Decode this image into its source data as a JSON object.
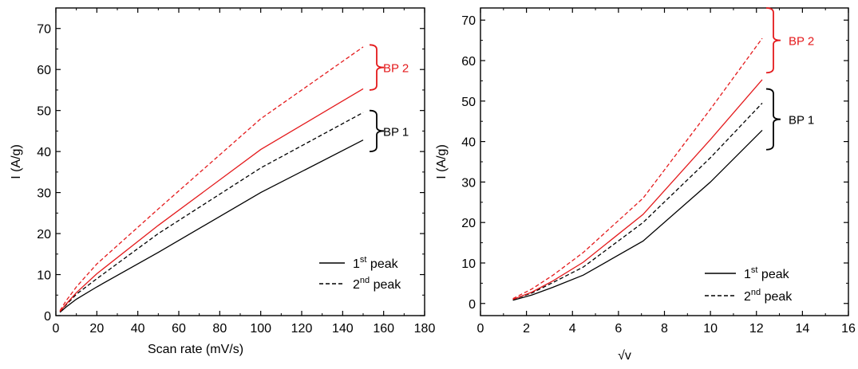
{
  "colors": {
    "bp1": "#000000",
    "bp2": "#e41a1c",
    "axis": "#000000",
    "background": "#ffffff"
  },
  "chart_data": [
    {
      "type": "line",
      "xlabel": "Scan rate (mV/s)",
      "ylabel": "I (A/g)",
      "xlim": [
        0,
        180
      ],
      "ylim": [
        0,
        75
      ],
      "xticks": [
        "0",
        "20",
        "40",
        "60",
        "80",
        "100",
        "120",
        "140",
        "160",
        "180"
      ],
      "yticks": [
        "0",
        "10",
        "20",
        "30",
        "40",
        "50",
        "60",
        "70"
      ],
      "series": [
        {
          "group": "BP 1",
          "peak": "1st",
          "color": "#000000",
          "dash": "solid",
          "x": [
            2,
            5,
            10,
            20,
            50,
            100,
            150
          ],
          "y": [
            0.8,
            2.1,
            4.0,
            7.0,
            15.4,
            30.0,
            42.8
          ]
        },
        {
          "group": "BP 1",
          "peak": "2nd",
          "color": "#000000",
          "dash": "dashed",
          "x": [
            2,
            5,
            10,
            20,
            50,
            100,
            150
          ],
          "y": [
            1.0,
            2.6,
            5.2,
            9.0,
            20.0,
            36.0,
            49.5
          ]
        },
        {
          "group": "BP 2",
          "peak": "1st",
          "color": "#e41a1c",
          "dash": "solid",
          "x": [
            2,
            5,
            10,
            20,
            50,
            100,
            150
          ],
          "y": [
            1.0,
            2.8,
            5.6,
            10.2,
            22.0,
            40.5,
            55.3
          ]
        },
        {
          "group": "BP 2",
          "peak": "2nd",
          "color": "#e41a1c",
          "dash": "dashed",
          "x": [
            2,
            5,
            10,
            20,
            50,
            100,
            150
          ],
          "y": [
            1.2,
            3.6,
            7.0,
            12.6,
            26.0,
            48.0,
            65.5
          ]
        }
      ],
      "annotations": [
        {
          "text": "BP 2",
          "color": "#e41a1c",
          "range": [
            55,
            66
          ]
        },
        {
          "text": "BP 1",
          "color": "#000000",
          "range": [
            40,
            50
          ]
        }
      ],
      "legend": {
        "placement": "bottom-right",
        "entries": [
          {
            "base": "1",
            "sup": "st",
            "text": " peak",
            "dash": "solid"
          },
          {
            "base": "2",
            "sup": "nd",
            "text": " peak",
            "dash": "dashed"
          }
        ]
      },
      "grid": false
    },
    {
      "type": "line",
      "xlabel": "√v",
      "ylabel": "I (A/g)",
      "xlim": [
        0,
        16
      ],
      "ylim": [
        -3,
        73
      ],
      "xticks": [
        "0",
        "2",
        "4",
        "6",
        "8",
        "10",
        "12",
        "14",
        "16"
      ],
      "yticks": [
        "0",
        "10",
        "20",
        "30",
        "40",
        "50",
        "60",
        "70"
      ],
      "series": [
        {
          "group": "BP 1",
          "peak": "1st",
          "color": "#000000",
          "dash": "solid",
          "x": [
            1.41,
            2.24,
            3.16,
            4.47,
            7.07,
            10.0,
            12.25
          ],
          "y": [
            0.8,
            2.1,
            4.0,
            7.0,
            15.4,
            30.0,
            42.8
          ]
        },
        {
          "group": "BP 1",
          "peak": "2nd",
          "color": "#000000",
          "dash": "dashed",
          "x": [
            1.41,
            2.24,
            3.16,
            4.47,
            7.07,
            10.0,
            12.25
          ],
          "y": [
            1.0,
            2.6,
            5.2,
            9.0,
            20.0,
            36.0,
            49.5
          ]
        },
        {
          "group": "BP 2",
          "peak": "1st",
          "color": "#e41a1c",
          "dash": "solid",
          "x": [
            1.41,
            2.24,
            3.16,
            4.47,
            7.07,
            10.0,
            12.25
          ],
          "y": [
            1.0,
            2.8,
            5.6,
            10.2,
            22.0,
            40.5,
            55.3
          ]
        },
        {
          "group": "BP 2",
          "peak": "2nd",
          "color": "#e41a1c",
          "dash": "dashed",
          "x": [
            1.41,
            2.24,
            3.16,
            4.47,
            7.07,
            10.0,
            12.25
          ],
          "y": [
            1.2,
            3.6,
            7.0,
            12.6,
            26.0,
            48.0,
            65.5
          ]
        }
      ],
      "annotations": [
        {
          "text": "BP 2",
          "color": "#e41a1c",
          "range": [
            57,
            73
          ]
        },
        {
          "text": "BP 1",
          "color": "#000000",
          "range": [
            38,
            53
          ]
        }
      ],
      "legend": {
        "placement": "bottom-right",
        "entries": [
          {
            "base": "1",
            "sup": "st",
            "text": " peak",
            "dash": "solid"
          },
          {
            "base": "2",
            "sup": "nd",
            "text": " peak",
            "dash": "dashed"
          }
        ]
      },
      "grid": false
    }
  ]
}
